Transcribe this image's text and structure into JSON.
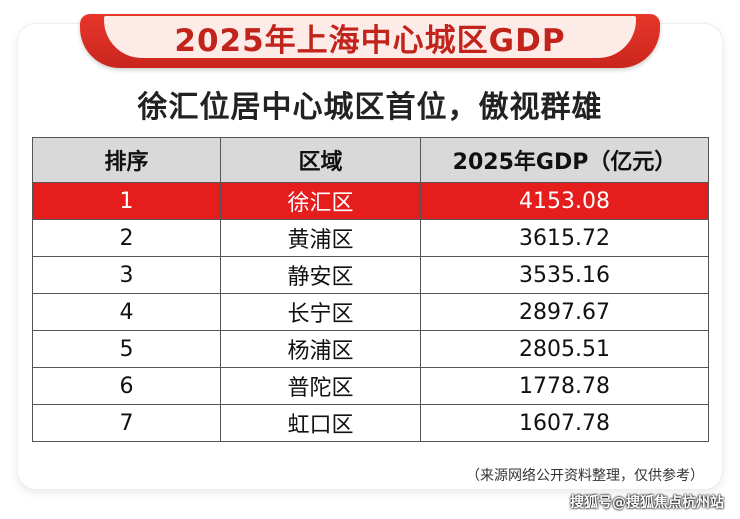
{
  "banner": {
    "title": "2025年上海中心城区GDP"
  },
  "subtitle": "徐汇位居中心城区首位，傲视群雄",
  "colors": {
    "accent": "#e51d1d",
    "header_bg": "#d9d9d9",
    "banner_red": "#c9261d"
  },
  "chart_data": {
    "type": "table",
    "columns": [
      "排序",
      "区域",
      "2025年GDP（亿元）"
    ],
    "rows": [
      {
        "rank": "1",
        "district": "徐汇区",
        "gdp": "4153.08",
        "highlight": true
      },
      {
        "rank": "2",
        "district": "黄浦区",
        "gdp": "3615.72"
      },
      {
        "rank": "3",
        "district": "静安区",
        "gdp": "3535.16"
      },
      {
        "rank": "4",
        "district": "长宁区",
        "gdp": "2897.67"
      },
      {
        "rank": "5",
        "district": "杨浦区",
        "gdp": "2805.51"
      },
      {
        "rank": "6",
        "district": "普陀区",
        "gdp": "1778.78"
      },
      {
        "rank": "7",
        "district": "虹口区",
        "gdp": "1607.78"
      }
    ]
  },
  "source_note": "（来源网络公开资料整理，仅供参考）",
  "watermark": "搜狐号@搜狐焦点杭州站"
}
